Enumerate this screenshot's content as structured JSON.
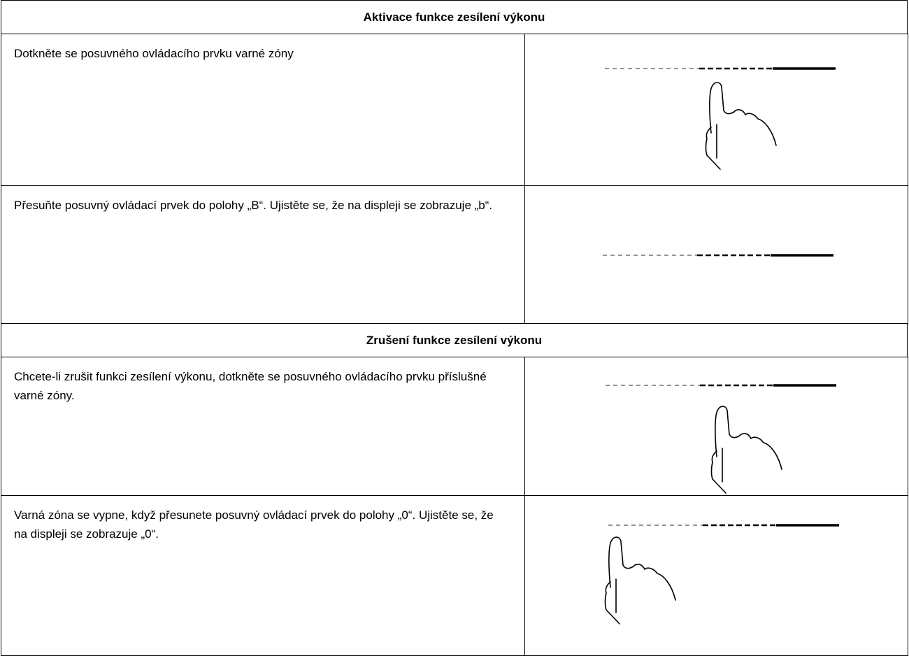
{
  "sections": [
    {
      "title": "Aktivace funkce zesílení výkonu",
      "rows": [
        {
          "text": "Dotkněte se posuvného ovládacího prvku varné zóny"
        },
        {
          "text": "Přesuňte posuvný ovládací prvek do polohy „B“. Ujistěte se, že na displeji se zobrazuje „b“."
        }
      ]
    },
    {
      "title": "Zrušení funkce zesílení výkonu",
      "rows": [
        {
          "text": "Chcete-li zrušit funkci zesílení výkonu, dotkněte se posuvného ovládacího prvku příslušné varné zóny."
        },
        {
          "text": "Varná zóna se vypne, když přesunete posuvný ovládací prvek do polohy „0“. Ujistěte se, že na displeji se zobrazuje „0“."
        }
      ]
    }
  ]
}
